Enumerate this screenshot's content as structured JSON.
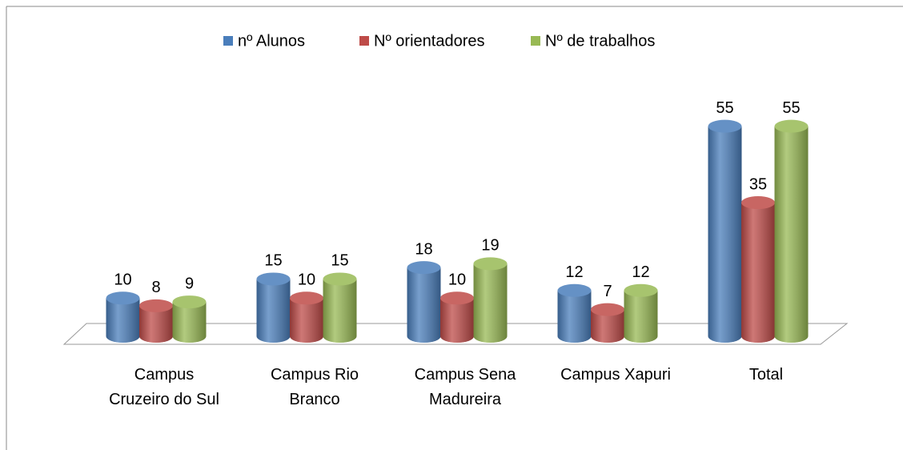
{
  "chart_data": {
    "type": "bar3d",
    "categories": [
      "Campus Cruzeiro do Sul",
      "Campus Rio Branco",
      "Campus Sena Madureira",
      "Campus Xapuri",
      "Total"
    ],
    "series": [
      {
        "name": "nº Alunos",
        "color": "#4a7ebb",
        "values": [
          10,
          15,
          18,
          12,
          55
        ]
      },
      {
        "name": "Nº orientadores",
        "color": "#be4b48",
        "values": [
          8,
          10,
          10,
          7,
          35
        ]
      },
      {
        "name": "Nº de trabalhos",
        "color": "#98b954",
        "values": [
          9,
          15,
          19,
          12,
          55
        ]
      }
    ],
    "legend": "top"
  }
}
